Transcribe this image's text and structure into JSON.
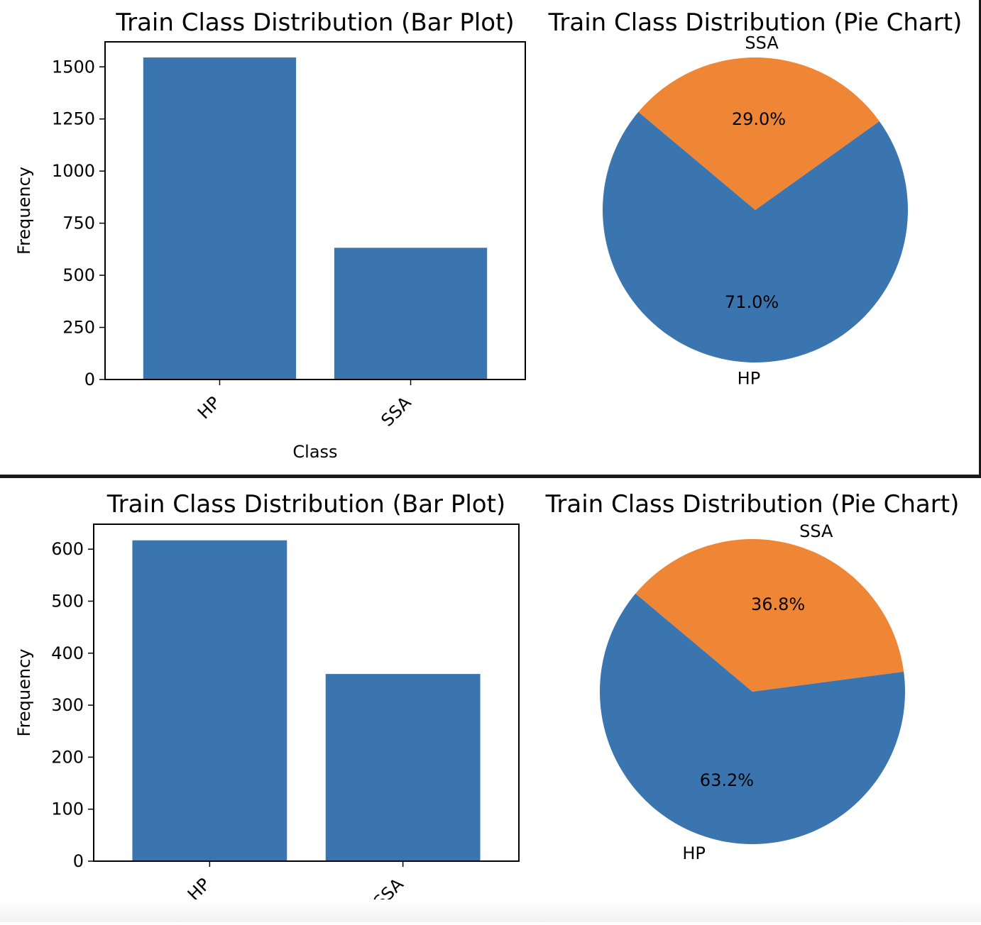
{
  "colors": {
    "hp": "#3b75af",
    "ssa": "#ef8636",
    "axis": "#000000",
    "divider": "#1a1a1a"
  },
  "chart_data": [
    {
      "type": "bar",
      "title": "Train Class Distribution (Bar Plot)",
      "categories": [
        "HP",
        "SSA"
      ],
      "values": [
        1545,
        632
      ],
      "xlabel": "Class",
      "ylabel": "Frequency",
      "ylim": [
        0,
        1620
      ],
      "yticks": [
        0,
        250,
        500,
        750,
        1000,
        1250,
        1500
      ],
      "grid": false
    },
    {
      "type": "pie",
      "title": "Train Class Distribution (Pie Chart)",
      "labels": [
        "HP",
        "SSA"
      ],
      "values": [
        71.0,
        29.0
      ],
      "autopct": [
        "71.0%",
        "29.0%"
      ],
      "startangle": 140
    },
    {
      "type": "bar",
      "title": "Train Class Distribution (Bar Plot)",
      "categories": [
        "HP",
        "SSA"
      ],
      "values": [
        617,
        360
      ],
      "xlabel": "",
      "ylabel": "Frequency",
      "ylim": [
        0,
        648
      ],
      "yticks": [
        0,
        100,
        200,
        300,
        400,
        500,
        600
      ],
      "grid": false
    },
    {
      "type": "pie",
      "title": "Train Class Distribution (Pie Chart)",
      "labels": [
        "HP",
        "SSA"
      ],
      "values": [
        63.2,
        36.8
      ],
      "autopct": [
        "63.2%",
        "36.8%"
      ],
      "startangle": 140
    }
  ]
}
